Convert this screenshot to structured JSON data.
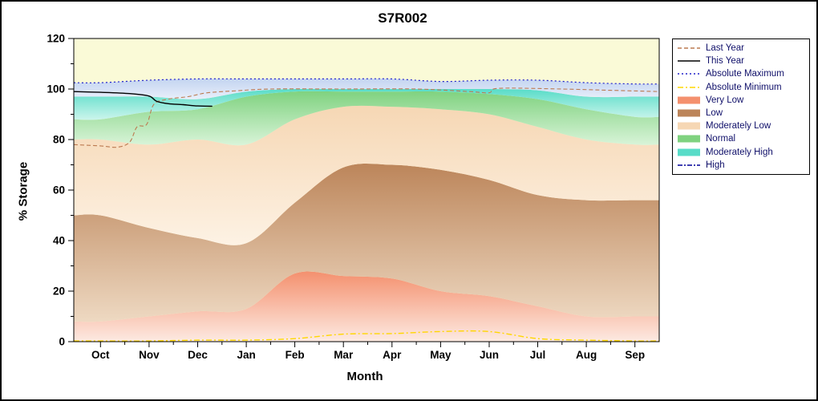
{
  "chart_data": {
    "type": "area",
    "title": "S7R002",
    "xlabel": "Month",
    "ylabel": "% Storage",
    "ylim": [
      0,
      120
    ],
    "y_major_ticks": [
      0,
      20,
      40,
      60,
      80,
      100,
      120
    ],
    "y_minor_step": 10,
    "categories": [
      "Oct",
      "Nov",
      "Dec",
      "Jan",
      "Feb",
      "Mar",
      "Apr",
      "May",
      "Jun",
      "Jul",
      "Aug",
      "Sep"
    ],
    "plot_bg": "#fafad7",
    "bands": [
      {
        "name": "Very Low",
        "top": [
          8,
          10,
          12,
          13,
          27,
          26,
          25,
          20,
          18,
          14,
          10,
          10
        ],
        "color_top": "#f4906e",
        "color_bottom": "#fdeae2"
      },
      {
        "name": "Low",
        "top": [
          50,
          45,
          41,
          39,
          55,
          69,
          70,
          68,
          64,
          58,
          56,
          56
        ],
        "color_top": "#bc855a",
        "color_bottom": "#eed9c2"
      },
      {
        "name": "Moderately Low",
        "top": [
          80,
          78,
          80,
          78,
          88,
          93,
          93,
          92,
          90,
          85,
          80,
          78
        ],
        "color_top": "#f6d7b4",
        "color_bottom": "#fdf2e4"
      },
      {
        "name": "Normal",
        "top": [
          88,
          91,
          92,
          97,
          99,
          99,
          99,
          99,
          98,
          96,
          92,
          89
        ],
        "color_top": "#7fd27f",
        "color_bottom": "#d9f4d9"
      },
      {
        "name": "Moderately High",
        "top": [
          97,
          97,
          96,
          99,
          100,
          100,
          100,
          100,
          100,
          99.5,
          97,
          97
        ],
        "color_top": "#58dcc8",
        "color_bottom": "#ccf5ec"
      },
      {
        "name": "High",
        "top": [
          102.5,
          103.5,
          104,
          104,
          104,
          104,
          104,
          103,
          103.5,
          103.5,
          102.5,
          102
        ],
        "color_top": "#c3d4f0",
        "color_bottom": "#e9effb"
      }
    ],
    "series": [
      {
        "name": "Absolute Maximum",
        "values": [
          102.5,
          103.5,
          104,
          104,
          104,
          104,
          104,
          103,
          103.5,
          103.5,
          102.5,
          102
        ],
        "color": "#2222cc",
        "dash": "2 3",
        "width": 1.2
      },
      {
        "name": "Absolute Minimum",
        "values": [
          0.3,
          0.3,
          0.6,
          0.6,
          1.2,
          3,
          3.2,
          4,
          4,
          1.2,
          0.6,
          0.3
        ],
        "color": "#ffd700",
        "dash": "7 3 2 3",
        "width": 1.4
      },
      {
        "name": "Last Year",
        "points": [
          [
            -0.55,
            78
          ],
          [
            0,
            77.5
          ],
          [
            0.35,
            77
          ],
          [
            0.6,
            79
          ],
          [
            0.75,
            85
          ],
          [
            0.95,
            86
          ],
          [
            1.1,
            94
          ],
          [
            1.4,
            96
          ],
          [
            1.8,
            97
          ],
          [
            2.2,
            98.5
          ],
          [
            2.8,
            99.3
          ],
          [
            3.5,
            100
          ],
          [
            5,
            100
          ],
          [
            6.5,
            100
          ],
          [
            7.6,
            99
          ],
          [
            8,
            98.5
          ],
          [
            8.2,
            100.3
          ],
          [
            9.5,
            100
          ],
          [
            10.5,
            99.5
          ],
          [
            11.5,
            99
          ]
        ],
        "color": "#bc7a50",
        "dash": "5 3",
        "width": 1.1
      },
      {
        "name": "This Year",
        "points": [
          [
            -0.55,
            99
          ],
          [
            0,
            98.7
          ],
          [
            0.6,
            98.2
          ],
          [
            1,
            97.2
          ],
          [
            1.15,
            95.2
          ],
          [
            1.4,
            94.2
          ],
          [
            1.7,
            93.8
          ],
          [
            2,
            93.3
          ],
          [
            2.3,
            93.2
          ]
        ],
        "color": "#000000",
        "dash": "",
        "width": 1.4
      }
    ],
    "legend": [
      {
        "label": "Last Year",
        "type": "line",
        "color": "#bc7a50",
        "dash": "5 3"
      },
      {
        "label": "This Year",
        "type": "line",
        "color": "#000000",
        "dash": ""
      },
      {
        "label": "Absolute Maximum",
        "type": "line",
        "color": "#2222cc",
        "dash": "2 3"
      },
      {
        "label": "Absolute Minimum",
        "type": "line",
        "color": "#ffd700",
        "dash": "7 3 2 3"
      },
      {
        "label": "Very Low",
        "type": "box",
        "color": "#f4906e"
      },
      {
        "label": "Low",
        "type": "box",
        "color": "#bc855a"
      },
      {
        "label": "Moderately Low",
        "type": "box",
        "color": "#f6d7b4"
      },
      {
        "label": "Normal",
        "type": "box",
        "color": "#7fd27f"
      },
      {
        "label": "Moderately High",
        "type": "box",
        "color": "#58dcc8"
      },
      {
        "label": "High",
        "type": "line",
        "color": "#000099",
        "dash": "6 2 2 2"
      }
    ]
  }
}
